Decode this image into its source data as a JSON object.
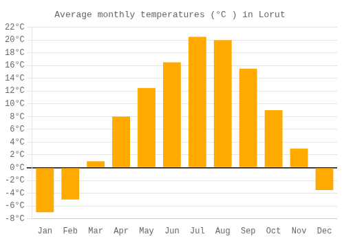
{
  "chart_data": {
    "type": "bar",
    "title": "Average monthly temperatures (°C ) in Lorut",
    "categories": [
      "Jan",
      "Feb",
      "Mar",
      "Apr",
      "May",
      "Jun",
      "Jul",
      "Aug",
      "Sep",
      "Oct",
      "Nov",
      "Dec"
    ],
    "values": [
      -7,
      -5,
      1,
      8,
      12.5,
      16.5,
      20.5,
      20,
      15.5,
      9,
      3,
      -3.5
    ],
    "color": "#FFAA00",
    "ylim": [
      -8,
      22
    ],
    "yticks": [
      {
        "value": -8,
        "label": "-8°C"
      },
      {
        "value": -6,
        "label": "-6°C"
      },
      {
        "value": -4,
        "label": "-4°C"
      },
      {
        "value": -2,
        "label": "-2°C"
      },
      {
        "value": 0,
        "label": "0°C"
      },
      {
        "value": 2,
        "label": "2°C"
      },
      {
        "value": 4,
        "label": "4°C"
      },
      {
        "value": 6,
        "label": "6°C"
      },
      {
        "value": 8,
        "label": "8°C"
      },
      {
        "value": 10,
        "label": "10°C"
      },
      {
        "value": 12,
        "label": "12°C"
      },
      {
        "value": 14,
        "label": "14°C"
      },
      {
        "value": 16,
        "label": "16°C"
      },
      {
        "value": 18,
        "label": "18°C"
      },
      {
        "value": 20,
        "label": "20°C"
      },
      {
        "value": 22,
        "label": "22°C"
      }
    ],
    "grid": true
  }
}
